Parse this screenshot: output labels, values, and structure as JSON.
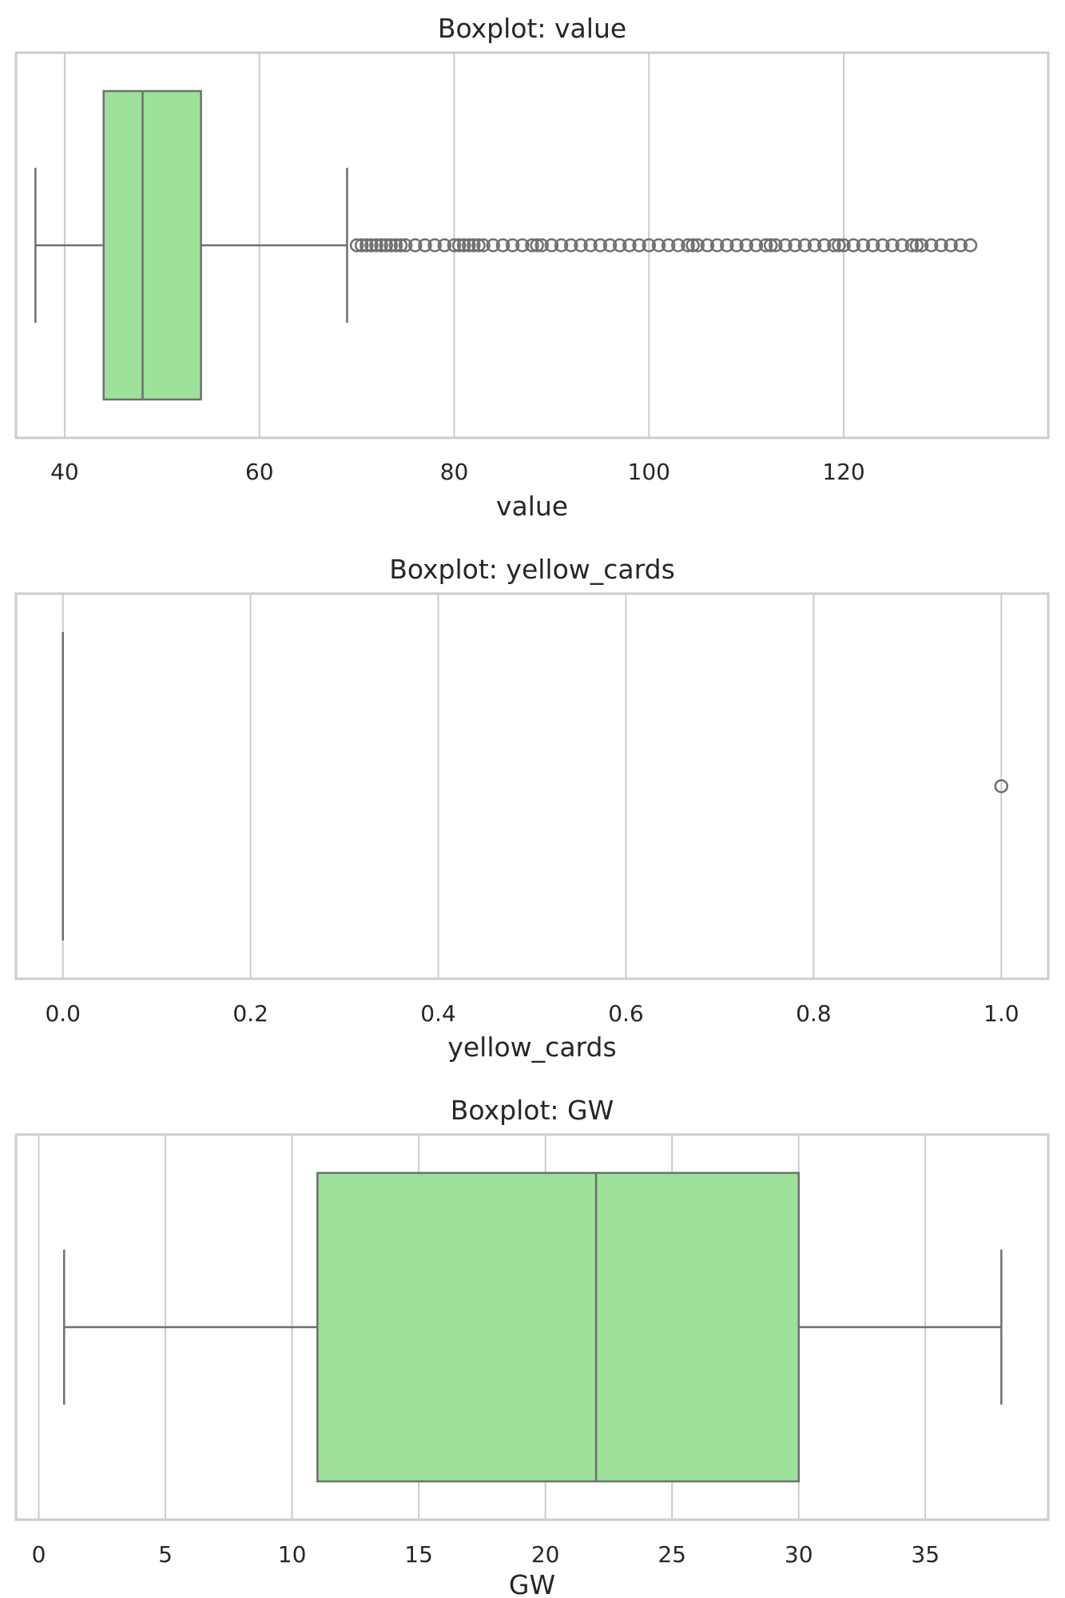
{
  "colors": {
    "box_fill": "#9de19a",
    "line": "#6f6f6f",
    "grid": "#cccccc",
    "frame": "#cccccc"
  },
  "chart_data": [
    {
      "type": "boxplot",
      "title": "Boxplot: value",
      "xlabel": "value",
      "ylabel": "",
      "orientation": "horizontal",
      "xlim": [
        35,
        141
      ],
      "ticks": [
        40,
        60,
        80,
        100,
        120
      ],
      "tick_labels": [
        "40",
        "60",
        "80",
        "100",
        "120"
      ],
      "grid": true,
      "box": {
        "whisker_low": 37,
        "q1": 44,
        "median": 48,
        "q3": 54,
        "whisker_high": 69
      },
      "outliers": [
        70,
        70.5,
        71,
        71.5,
        72,
        72.5,
        73,
        73.5,
        74,
        74.5,
        75,
        76,
        77,
        78,
        79,
        80,
        80.5,
        81,
        81.5,
        82,
        82.5,
        83,
        84,
        85,
        86,
        87,
        88,
        88.5,
        89,
        90,
        91,
        92,
        93,
        94,
        95,
        96,
        97,
        98,
        99,
        100,
        101,
        102,
        103,
        104,
        104.5,
        105,
        106,
        107,
        108,
        109,
        110,
        111,
        112,
        112.5,
        113,
        114,
        115,
        116,
        117,
        118,
        119,
        119.5,
        120,
        121,
        122,
        123,
        124,
        125,
        126,
        127,
        127.5,
        128,
        129,
        130,
        131,
        132,
        133
      ]
    },
    {
      "type": "boxplot",
      "title": "Boxplot: yellow_cards",
      "xlabel": "yellow_cards",
      "ylabel": "",
      "orientation": "horizontal",
      "xlim": [
        -0.05,
        1.05
      ],
      "ticks": [
        0.0,
        0.2,
        0.4,
        0.6,
        0.8,
        1.0
      ],
      "tick_labels": [
        "0.0",
        "0.2",
        "0.4",
        "0.6",
        "0.8",
        "1.0"
      ],
      "grid": true,
      "box": {
        "whisker_low": 0,
        "q1": 0,
        "median": 0,
        "q3": 0,
        "whisker_high": 0
      },
      "outliers": [
        1.0
      ]
    },
    {
      "type": "boxplot",
      "title": "Boxplot: GW",
      "xlabel": "GW",
      "ylabel": "",
      "orientation": "horizontal",
      "xlim": [
        -0.9,
        39.85
      ],
      "ticks": [
        0,
        5,
        10,
        15,
        20,
        25,
        30,
        35
      ],
      "tick_labels": [
        "0",
        "5",
        "10",
        "15",
        "20",
        "25",
        "30",
        "35"
      ],
      "grid": true,
      "box": {
        "whisker_low": 1,
        "q1": 11,
        "median": 22,
        "q3": 30,
        "whisker_high": 38
      },
      "outliers": []
    }
  ]
}
